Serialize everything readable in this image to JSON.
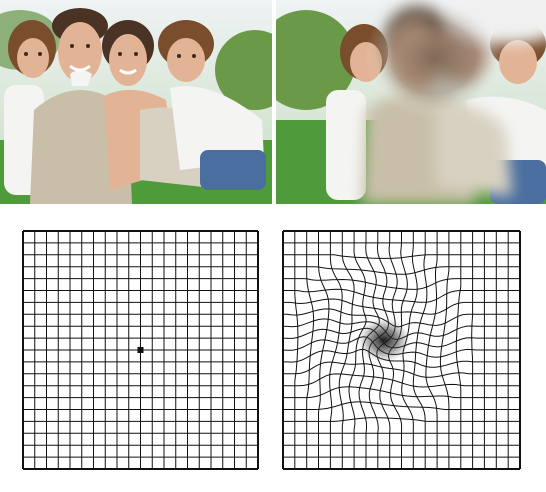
{
  "panels": [
    {
      "id": "photo-normal",
      "kind": "family-photo",
      "vision": "normal"
    },
    {
      "id": "photo-distorted",
      "kind": "family-photo",
      "vision": "central-blur"
    },
    {
      "id": "grid-normal",
      "kind": "amsler-grid",
      "vision": "normal",
      "cells": 20
    },
    {
      "id": "grid-distorted",
      "kind": "amsler-grid",
      "vision": "distorted",
      "cells": 20
    }
  ],
  "colors": {
    "sky": "#dfe8ec",
    "grass": "#4f9a3a",
    "foliage": "#6a9a48",
    "skin": "#e2b394",
    "hair_dark": "#4a3324",
    "hair_brown": "#7a4e2c",
    "shirt_white": "#f4f4f2",
    "sweater": "#c9bfa9",
    "jeans": "#4a6ea0",
    "grid_line": "#111111"
  }
}
